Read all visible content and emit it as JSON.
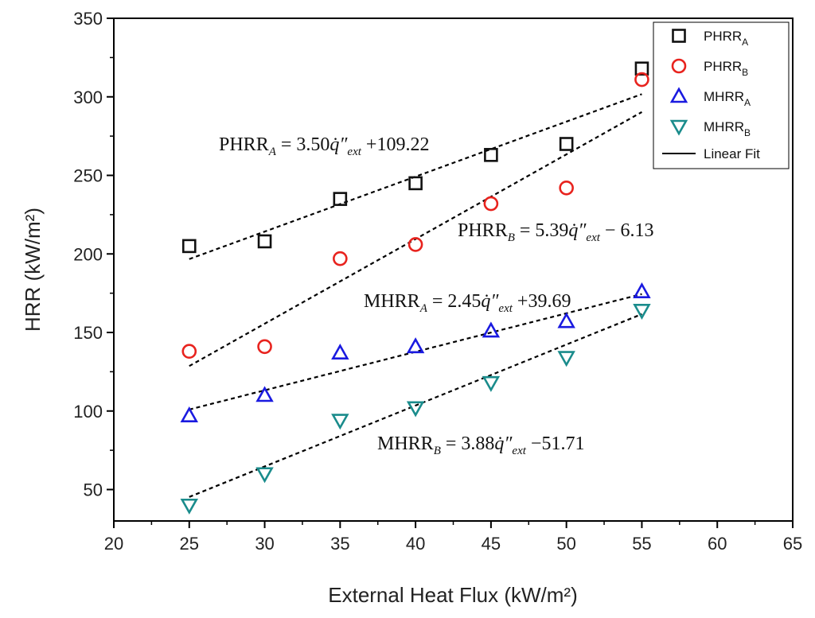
{
  "chart_data": {
    "type": "scatter",
    "xlabel": "External Heat Flux (kW/m²)",
    "ylabel": "HRR (kW/m²)",
    "xlim": [
      20,
      65
    ],
    "ylim": [
      30,
      350
    ],
    "x_ticks": [
      "20",
      "25",
      "30",
      "35",
      "40",
      "45",
      "50",
      "55",
      "60",
      "65"
    ],
    "y_ticks": [
      "50",
      "100",
      "150",
      "200",
      "250",
      "300",
      "350"
    ],
    "grid": false,
    "legend_position": "top-right",
    "series": [
      {
        "name": "PHRR_A",
        "label_main": "PHRR",
        "label_sub": "A",
        "marker": "square",
        "color": "#111111",
        "x": [
          25,
          30,
          35,
          40,
          45,
          50,
          55
        ],
        "y": [
          205,
          208,
          235,
          245,
          263,
          270,
          318
        ]
      },
      {
        "name": "PHRR_B",
        "label_main": "PHRR",
        "label_sub": "B",
        "marker": "circle",
        "color": "#e8231e",
        "x": [
          25,
          30,
          35,
          40,
          45,
          50,
          55
        ],
        "y": [
          138,
          141,
          197,
          206,
          232,
          242,
          311
        ]
      },
      {
        "name": "MHRR_A",
        "label_main": "MHRR",
        "label_sub": "A",
        "marker": "triangle-up",
        "color": "#1a1ae0",
        "x": [
          25,
          30,
          35,
          40,
          45,
          50,
          55
        ],
        "y": [
          97,
          110,
          137,
          141,
          151,
          157,
          176
        ]
      },
      {
        "name": "MHRR_B",
        "label_main": "MHRR",
        "label_sub": "B",
        "marker": "triangle-down",
        "color": "#1a8c8c",
        "x": [
          25,
          30,
          35,
          40,
          45,
          50,
          55
        ],
        "y": [
          40,
          60,
          94,
          102,
          118,
          134,
          164
        ]
      }
    ],
    "linear_fits": [
      {
        "series": "PHRR_A",
        "slope": 3.5,
        "intercept": 109.22,
        "x_range": [
          25,
          55
        ]
      },
      {
        "series": "PHRR_B",
        "slope": 5.39,
        "intercept": -6.13,
        "x_range": [
          25,
          55
        ]
      },
      {
        "series": "MHRR_A",
        "slope": 2.45,
        "intercept": 39.69,
        "x_range": [
          25,
          55
        ]
      },
      {
        "series": "MHRR_B",
        "slope": 3.88,
        "intercept": -51.71,
        "x_range": [
          25,
          55
        ]
      }
    ],
    "legend_fit_label": "Linear Fit",
    "annotations": [
      {
        "name": "PHRR",
        "sub": "A",
        "coef": "3.50",
        "sign": "+",
        "const": "109.22"
      },
      {
        "name": "PHRR",
        "sub": "B",
        "coef": "5.39",
        "sign": "−",
        "const": "6.13"
      },
      {
        "name": "MHRR",
        "sub": "A",
        "coef": "2.45",
        "sign": "+",
        "const": "39.69"
      },
      {
        "name": "MHRR",
        "sub": "B",
        "coef": "3.88",
        "sign": "−",
        "const": "51.71"
      }
    ],
    "equation_parts": {
      "equals": "=",
      "var": "q̇″",
      "var_sub": "ext"
    }
  }
}
